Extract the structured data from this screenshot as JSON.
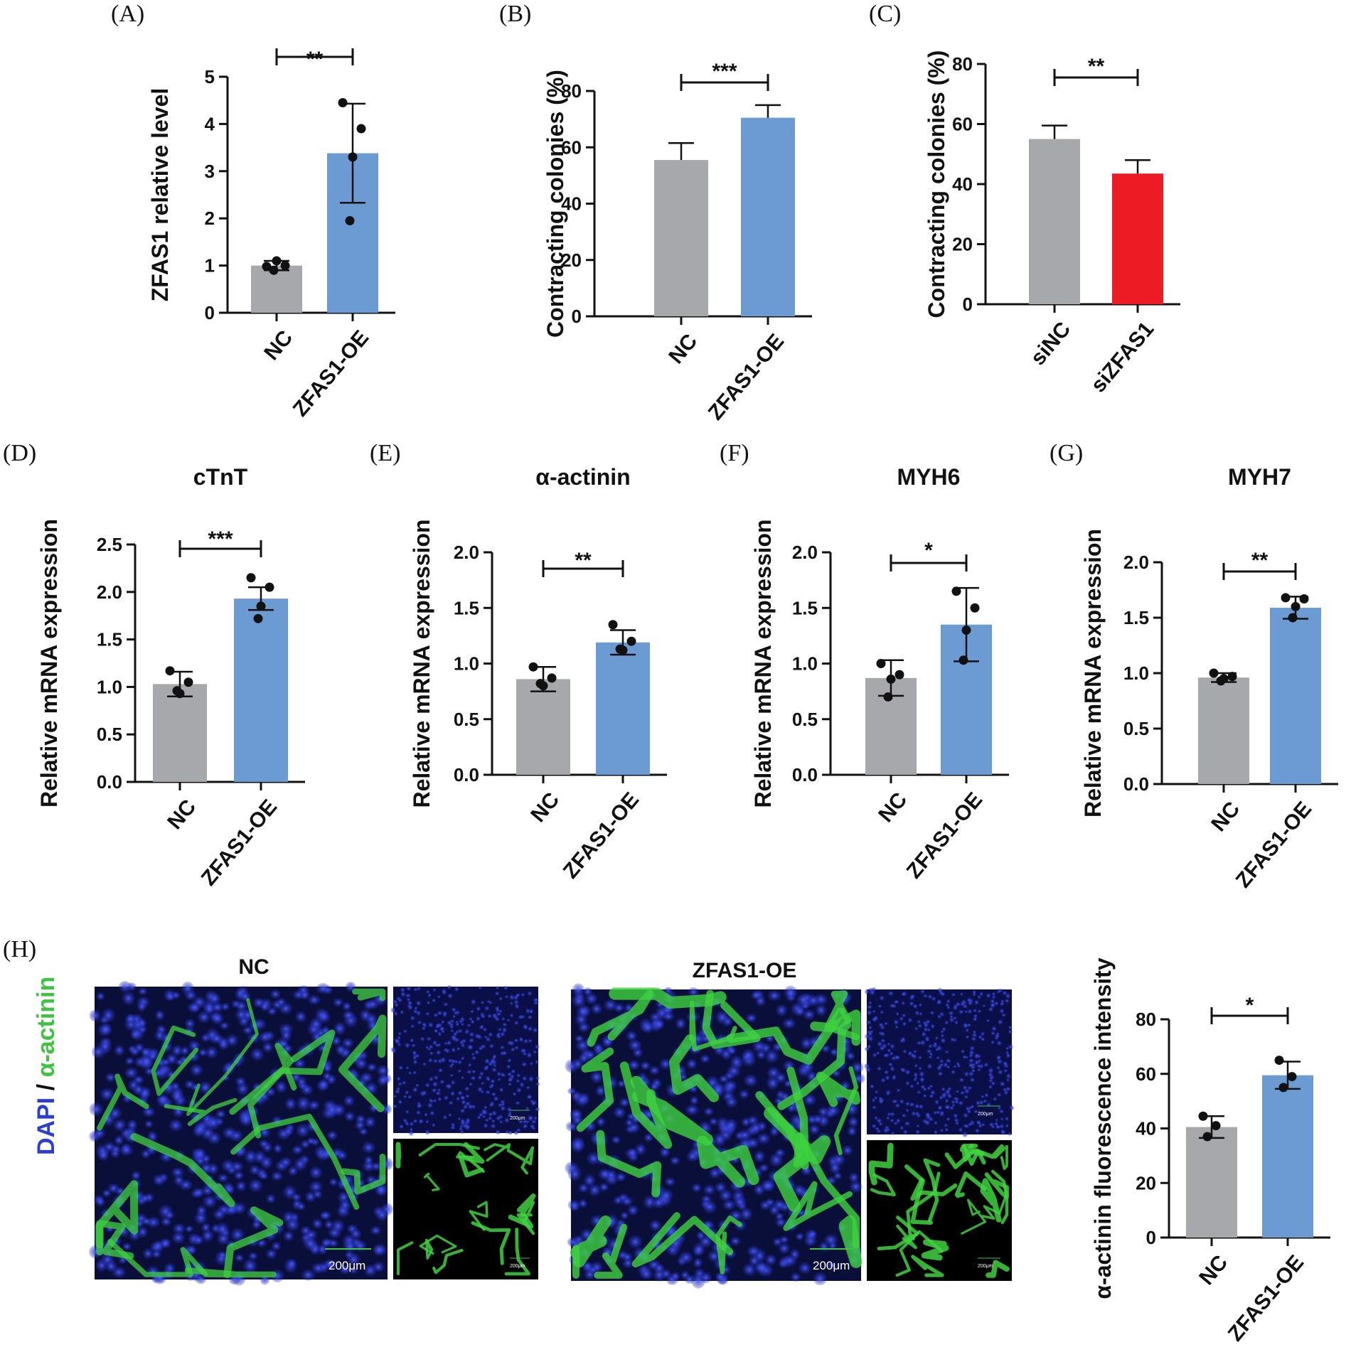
{
  "figure": {
    "panel_labels": [
      "(A)",
      "(B)",
      "(C)",
      "(D)",
      "(E)",
      "(F)",
      "(G)",
      "(H)"
    ],
    "stain_label": {
      "dapi": "DAPI",
      "sep": " / ",
      "actinin": "α-actinin"
    },
    "image_titles": {
      "nc": "NC",
      "oe": "ZFAS1-OE"
    },
    "scale_bar_text": "200μm",
    "colors": {
      "gray": "#a7a8ab",
      "blue": "#6b9bd2",
      "red": "#ed1c24",
      "dapi": "#2a3fd0",
      "actinin": "#3fc43f"
    }
  },
  "chart_data": [
    {
      "id": "A",
      "type": "bar",
      "title": "",
      "xlabel": "",
      "ylabel": "ZFAS1 relative level",
      "categories": [
        "NC",
        "ZFAS1-OE"
      ],
      "values": [
        1.0,
        3.38
      ],
      "errors": [
        0.1,
        1.05
      ],
      "points": [
        [
          0.98,
          1.0,
          1.1,
          0.9
        ],
        [
          4.45,
          3.9,
          3.3,
          1.95
        ]
      ],
      "ylim": [
        0,
        5
      ],
      "yticks": [
        "0",
        "1",
        "2",
        "3",
        "4",
        "5"
      ],
      "significance": "**",
      "colors": [
        "#a7a8ab",
        "#6b9bd2"
      ],
      "grid": false
    },
    {
      "id": "B",
      "type": "bar",
      "title": "",
      "xlabel": "",
      "ylabel": "Contracting colonies (%)",
      "categories": [
        "NC",
        "ZFAS1-OE"
      ],
      "values": [
        55.5,
        70.5
      ],
      "errors": [
        6.0,
        4.5
      ],
      "points": [
        [],
        []
      ],
      "ylim": [
        0,
        80
      ],
      "yticks": [
        "0",
        "20",
        "40",
        "60",
        "80"
      ],
      "significance": "***",
      "colors": [
        "#a7a8ab",
        "#6b9bd2"
      ],
      "grid": false
    },
    {
      "id": "C",
      "type": "bar",
      "title": "",
      "xlabel": "",
      "ylabel": "Contracting colonies (%)",
      "categories": [
        "siNC",
        "siZFAS1"
      ],
      "values": [
        55.0,
        43.5
      ],
      "errors": [
        4.5,
        4.5
      ],
      "points": [
        [],
        []
      ],
      "ylim": [
        0,
        80
      ],
      "yticks": [
        "0",
        "20",
        "40",
        "60",
        "80"
      ],
      "significance": "**",
      "colors": [
        "#a7a8ab",
        "#ed1c24"
      ],
      "grid": false
    },
    {
      "id": "D",
      "type": "bar",
      "title": "cTnT",
      "xlabel": "",
      "ylabel": "Relative mRNA expression",
      "categories": [
        "NC",
        "ZFAS1-OE"
      ],
      "values": [
        1.03,
        1.93
      ],
      "errors": [
        0.13,
        0.12
      ],
      "points": [
        [
          1.17,
          1.05,
          0.93,
          0.96
        ],
        [
          2.15,
          2.05,
          1.85,
          1.72
        ]
      ],
      "ylim": [
        0,
        2.5
      ],
      "yticks": [
        "0.0",
        "0.5",
        "1.0",
        "1.5",
        "2.0",
        "2.5"
      ],
      "significance": "***",
      "colors": [
        "#a7a8ab",
        "#6b9bd2"
      ],
      "grid": false
    },
    {
      "id": "E",
      "type": "bar",
      "title": "α-actinin",
      "xlabel": "",
      "ylabel": "Relative mRNA expression",
      "categories": [
        "NC",
        "ZFAS1-OE"
      ],
      "values": [
        0.86,
        1.19
      ],
      "errors": [
        0.11,
        0.11
      ],
      "points": [
        [
          0.97,
          0.87,
          0.8,
          0.82
        ],
        [
          1.35,
          1.2,
          1.12,
          1.13
        ]
      ],
      "ylim": [
        0,
        2.0
      ],
      "yticks": [
        "0.0",
        "0.5",
        "1.0",
        "1.5",
        "2.0"
      ],
      "significance": "**",
      "colors": [
        "#a7a8ab",
        "#6b9bd2"
      ],
      "grid": false
    },
    {
      "id": "F",
      "type": "bar",
      "title": "MYH6",
      "xlabel": "",
      "ylabel": "Relative mRNA expression",
      "categories": [
        "NC",
        "ZFAS1-OE"
      ],
      "values": [
        0.87,
        1.35
      ],
      "errors": [
        0.16,
        0.33
      ],
      "points": [
        [
          1.0,
          0.9,
          0.86,
          0.7
        ],
        [
          1.65,
          1.5,
          1.3,
          1.03
        ]
      ],
      "ylim": [
        0,
        2.0
      ],
      "yticks": [
        "0.0",
        "0.5",
        "1.0",
        "1.5",
        "2.0"
      ],
      "significance": "*",
      "colors": [
        "#a7a8ab",
        "#6b9bd2"
      ],
      "grid": false
    },
    {
      "id": "G",
      "type": "bar",
      "title": "MYH7",
      "xlabel": "",
      "ylabel": "Relative mRNA expression",
      "categories": [
        "NC",
        "ZFAS1-OE"
      ],
      "values": [
        0.96,
        1.59
      ],
      "errors": [
        0.04,
        0.1
      ],
      "points": [
        [
          1.0,
          0.97,
          0.95,
          0.93
        ],
        [
          1.68,
          1.67,
          1.6,
          1.5
        ]
      ],
      "ylim": [
        0,
        2.0
      ],
      "yticks": [
        "0.0",
        "0.5",
        "1.0",
        "1.5",
        "2.0"
      ],
      "significance": "**",
      "colors": [
        "#a7a8ab",
        "#6b9bd2"
      ],
      "grid": false
    },
    {
      "id": "H",
      "type": "bar",
      "title": "",
      "xlabel": "",
      "ylabel": "α-actinin fluorescence intensity",
      "categories": [
        "NC",
        "ZFAS1-OE"
      ],
      "values": [
        40.5,
        59.5
      ],
      "errors": [
        4.0,
        5.0
      ],
      "points": [
        [
          44.5,
          41.0,
          37.0
        ],
        [
          65.0,
          59.0,
          55.0
        ]
      ],
      "ylim": [
        0,
        80
      ],
      "yticks": [
        "0",
        "20",
        "40",
        "60",
        "80"
      ],
      "significance": "*",
      "colors": [
        "#a7a8ab",
        "#6b9bd2"
      ],
      "grid": false
    }
  ]
}
